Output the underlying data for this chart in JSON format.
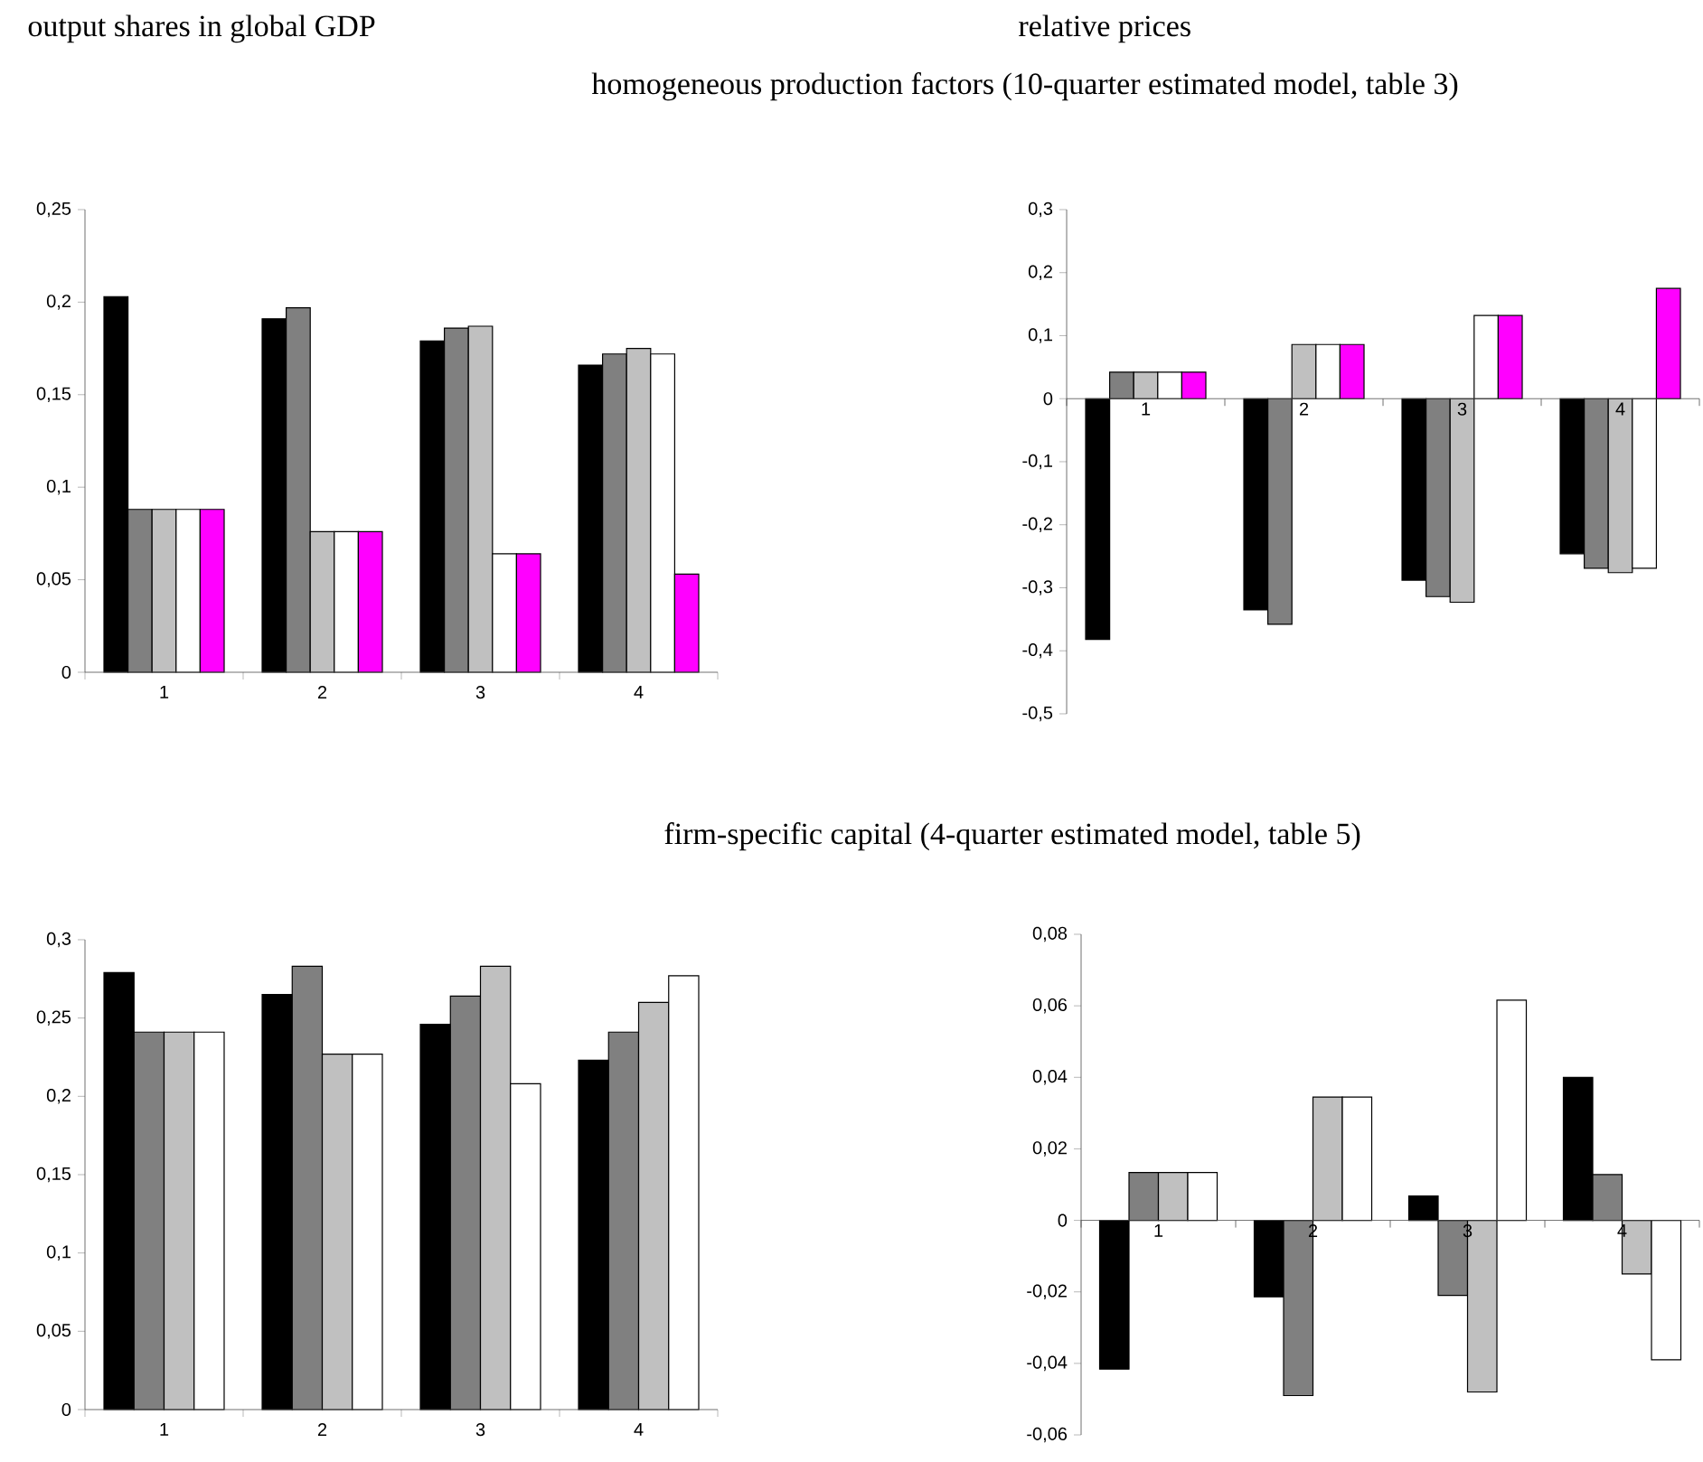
{
  "chart_data": [
    {
      "type": "bar",
      "title": "output shares in global GDP",
      "subtitle": "homogeneous production factors (10-quarter estimated model, table 3)",
      "categories": [
        "1",
        "2",
        "3",
        "4"
      ],
      "ylim": [
        0,
        0.25
      ],
      "yticks": [
        0,
        {
          "value": 0.05,
          "label": "0,05"
        },
        {
          "value": 0.1,
          "label": "0,1"
        },
        {
          "value": 0.15,
          "label": "0,15"
        },
        {
          "value": 0.2,
          "label": "0,2"
        },
        {
          "value": 0.25,
          "label": "0,25"
        }
      ],
      "series": [
        {
          "color": "#000000",
          "values": [
            0.203,
            0.191,
            0.179,
            0.166
          ]
        },
        {
          "color": "#808080",
          "values": [
            0.088,
            0.197,
            0.186,
            0.172
          ]
        },
        {
          "color": "#c0c0c0",
          "values": [
            0.088,
            0.076,
            0.187,
            0.175
          ]
        },
        {
          "color": "#ffffff",
          "values": [
            0.088,
            0.076,
            0.064,
            0.172
          ]
        },
        {
          "color": "#ff00ff",
          "values": [
            0.088,
            0.076,
            0.064,
            0.053
          ]
        }
      ]
    },
    {
      "type": "bar",
      "title": "relative prices",
      "categories": [
        "1",
        "2",
        "3",
        "4"
      ],
      "ylim": [
        -0.5,
        0.3
      ],
      "yticks": [
        {
          "value": -0.5,
          "label": "-0,5"
        },
        {
          "value": -0.4,
          "label": "-0,4"
        },
        {
          "value": -0.3,
          "label": "-0,3"
        },
        {
          "value": -0.2,
          "label": "-0,2"
        },
        {
          "value": -0.1,
          "label": "-0,1"
        },
        0,
        {
          "value": 0.1,
          "label": "0,1"
        },
        {
          "value": 0.2,
          "label": "0,2"
        },
        {
          "value": 0.3,
          "label": "0,3"
        }
      ],
      "series": [
        {
          "color": "#000000",
          "values": [
            -0.382,
            -0.335,
            -0.288,
            -0.246
          ]
        },
        {
          "color": "#808080",
          "values": [
            0.042,
            -0.358,
            -0.314,
            -0.269
          ]
        },
        {
          "color": "#c0c0c0",
          "values": [
            0.042,
            0.086,
            -0.323,
            -0.276
          ]
        },
        {
          "color": "#ffffff",
          "values": [
            0.042,
            0.086,
            0.132,
            -0.269
          ]
        },
        {
          "color": "#ff00ff",
          "values": [
            0.042,
            0.086,
            0.132,
            0.175
          ]
        }
      ]
    },
    {
      "type": "bar",
      "subtitle": "firm-specific capital (4-quarter estimated model, table 5)",
      "categories": [
        "1",
        "2",
        "3",
        "4"
      ],
      "ylim": [
        0,
        0.3
      ],
      "yticks": [
        0,
        {
          "value": 0.05,
          "label": "0,05"
        },
        {
          "value": 0.1,
          "label": "0,1"
        },
        {
          "value": 0.15,
          "label": "0,15"
        },
        {
          "value": 0.2,
          "label": "0,2"
        },
        {
          "value": 0.25,
          "label": "0,25"
        },
        {
          "value": 0.3,
          "label": "0,3"
        }
      ],
      "series": [
        {
          "color": "#000000",
          "values": [
            0.279,
            0.265,
            0.246,
            0.223
          ]
        },
        {
          "color": "#808080",
          "values": [
            0.241,
            0.283,
            0.264,
            0.241
          ]
        },
        {
          "color": "#c0c0c0",
          "values": [
            0.241,
            0.227,
            0.283,
            0.26
          ]
        },
        {
          "color": "#ffffff",
          "values": [
            0.241,
            0.227,
            0.208,
            0.277
          ]
        }
      ]
    },
    {
      "type": "bar",
      "categories": [
        "1",
        "2",
        "3",
        "4"
      ],
      "ylim": [
        -0.06,
        0.08
      ],
      "yticks": [
        {
          "value": -0.06,
          "label": "-0,06"
        },
        {
          "value": -0.04,
          "label": "-0,04"
        },
        {
          "value": -0.02,
          "label": "-0,02"
        },
        0,
        {
          "value": 0.02,
          "label": "0,02"
        },
        {
          "value": 0.04,
          "label": "0,04"
        },
        {
          "value": 0.06,
          "label": "0,06"
        },
        {
          "value": 0.08,
          "label": "0,08"
        }
      ],
      "series": [
        {
          "color": "#000000",
          "values": [
            -0.0416,
            -0.0214,
            0.0068,
            0.04
          ]
        },
        {
          "color": "#808080",
          "values": [
            0.0134,
            -0.049,
            -0.021,
            0.0128
          ]
        },
        {
          "color": "#c0c0c0",
          "values": [
            0.0134,
            0.0345,
            -0.048,
            -0.015
          ]
        },
        {
          "color": "#ffffff",
          "values": [
            0.0134,
            0.0345,
            0.0616,
            -0.039
          ]
        }
      ]
    }
  ]
}
